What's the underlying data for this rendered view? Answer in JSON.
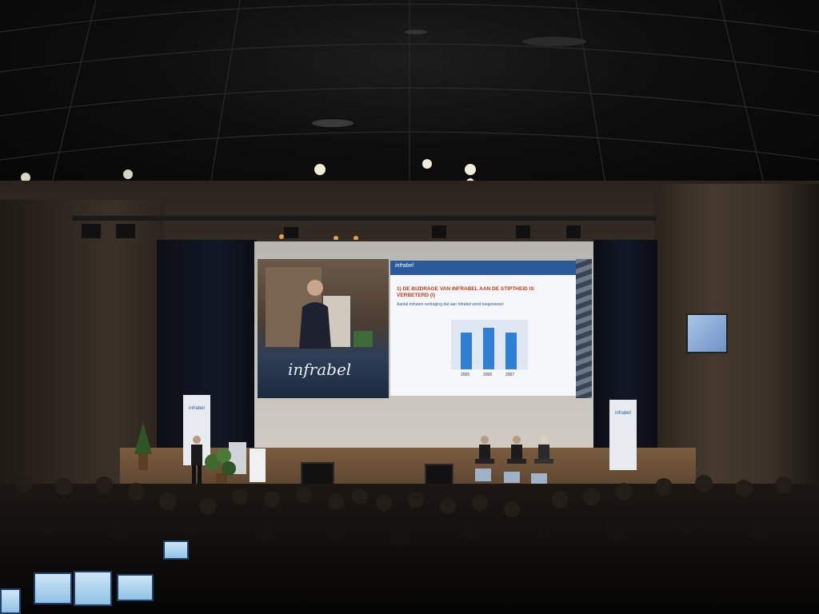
{
  "scene": {
    "description_free": true
  },
  "screen": {
    "logo": "infrabel",
    "slide": {
      "header_logo": "infrabel",
      "title": "1) DE BIJDRAGE VAN INFRABEL AAN DE STIPTHEID IS VERBETERD (I)",
      "subtitle": "Aantal minuten vertraging dat aan Infrabel werd toegewezen",
      "years": [
        "2005",
        "2006",
        "2007"
      ]
    }
  },
  "stage": {
    "banner_left_logo": "infrabel",
    "banner_right_logo": "infrabel"
  },
  "colors": {
    "slide_header": "#2a5a9a",
    "slide_title": "#c23a1a",
    "bar": "#2f7fd2"
  }
}
